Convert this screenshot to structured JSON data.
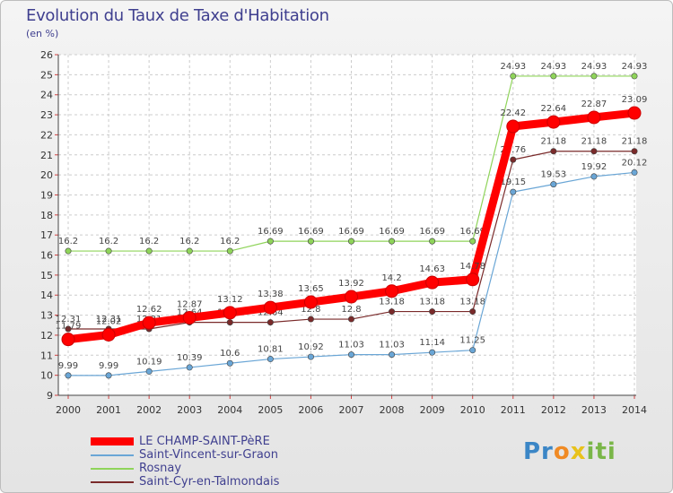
{
  "title": "Evolution du Taux de Taxe d'Habitation",
  "unit": "(en %)",
  "logo": {
    "p1": "Pr",
    "o": "o",
    "x": "x",
    "rest": "iti"
  },
  "chart_data": {
    "type": "line",
    "x": [
      2000,
      2001,
      2002,
      2003,
      2004,
      2005,
      2006,
      2007,
      2008,
      2009,
      2010,
      2011,
      2012,
      2013,
      2014
    ],
    "ylim": [
      9,
      26
    ],
    "yticks": [
      9,
      10,
      11,
      12,
      13,
      14,
      15,
      16,
      17,
      18,
      19,
      20,
      21,
      22,
      23,
      24,
      25,
      26
    ],
    "grid": true,
    "legend_position": "bottom-left",
    "series": [
      {
        "name": "LE CHAMP-SAINT-PèRE",
        "color": "#ff0000",
        "values": [
          11.79,
          12.02,
          12.62,
          12.87,
          13.12,
          13.38,
          13.65,
          13.92,
          14.2,
          14.63,
          14.78,
          22.42,
          22.64,
          22.87,
          23.09
        ],
        "labels": [
          "11.79",
          "12.02",
          "12.62",
          "12.87",
          "13.12",
          "13.38",
          "13.65",
          "13.92",
          "14.2",
          "14.63",
          "14.78",
          "22.42",
          "22.64",
          "22.87",
          "23.09"
        ]
      },
      {
        "name": "Saint-Vincent-sur-Graon",
        "color": "#6aa6d6",
        "values": [
          9.99,
          9.99,
          10.19,
          10.39,
          10.6,
          10.81,
          10.92,
          11.03,
          11.03,
          11.14,
          11.25,
          19.15,
          19.53,
          19.92,
          20.12
        ],
        "labels": [
          "9.99",
          "9.99",
          "10.19",
          "10.39",
          "10.6",
          "10.81",
          "10.92",
          "11.03",
          "11.03",
          "11.14",
          "11.25",
          "19.15",
          "19.53",
          "19.92",
          "20.12"
        ]
      },
      {
        "name": "Rosnay",
        "color": "#8fd45a",
        "values": [
          16.2,
          16.2,
          16.2,
          16.2,
          16.2,
          16.69,
          16.69,
          16.69,
          16.69,
          16.69,
          16.69,
          24.93,
          24.93,
          24.93,
          24.93
        ],
        "labels": [
          "16.2",
          "16.2",
          "16.2",
          "16.2",
          "16.2",
          "16.69",
          "16.69",
          "16.69",
          "16.69",
          "16.69",
          "16.69",
          "24.93",
          "24.93",
          "24.93",
          "24.93"
        ]
      },
      {
        "name": "Saint-Cyr-en-Talmondais",
        "color": "#7a2a2a",
        "values": [
          12.31,
          12.31,
          12.31,
          12.64,
          12.64,
          12.64,
          12.8,
          12.8,
          13.18,
          13.18,
          13.18,
          20.76,
          21.18,
          21.18,
          21.18
        ],
        "labels": [
          "12.31",
          "12.31",
          "12.31",
          "12.64",
          "12.64",
          "12.64",
          "12.8",
          "12.8",
          "13.18",
          "13.18",
          "13.18",
          "20.76",
          "21.18",
          "21.18",
          "21.18"
        ]
      }
    ]
  }
}
